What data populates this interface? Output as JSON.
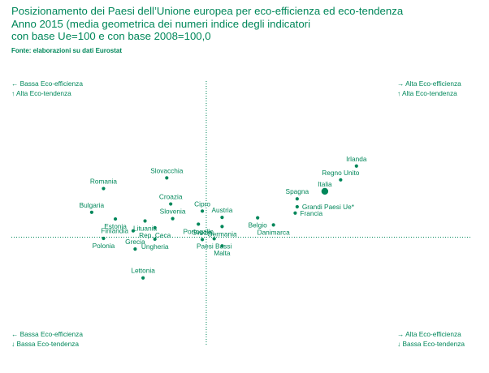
{
  "title_lines": [
    "Posizionamento dei Paesi dell’Unione europea per eco-efficienza ed eco-tendenza",
    "Anno 2015 (media geometrica dei numeri indice degli indicatori",
    "con base Ue=100 e con base 2008=100,0"
  ],
  "source": "Fonte: elaborazioni su dati Eurostat",
  "quadrants": {
    "top_left": [
      "← Bassa Eco-efficienza",
      "↑ Alta Eco-tendenza"
    ],
    "top_right": [
      "→ Alta Eco-efficienza",
      "↑ Alta Eco-tendenza"
    ],
    "bottom_left": [
      "← Bassa Eco-efficienza",
      "↓ Bassa Eco-tendenza"
    ],
    "bottom_right": [
      "→ Alta Eco-efficienza",
      "↓ Bassa Eco-tendenza"
    ]
  },
  "colors": {
    "accent": "#00875a"
  },
  "chart_data": {
    "type": "scatter",
    "reference_lines": {
      "x": 100,
      "y": 100
    },
    "xlim": [
      70,
      144
    ],
    "ylim": [
      80,
      128
    ],
    "points": [
      {
        "label": "Irlanda",
        "x": 138.0,
        "y": 118.0,
        "label_pos": "above"
      },
      {
        "label": "Regno Unito",
        "x": 134.0,
        "y": 114.5,
        "label_pos": "above"
      },
      {
        "label": "Italia",
        "x": 130.0,
        "y": 111.6,
        "label_pos": "above",
        "highlight": true
      },
      {
        "label": "Spagna",
        "x": 123.0,
        "y": 109.7,
        "label_pos": "above"
      },
      {
        "label": "Grandi Paesi Ue*",
        "x": 123.0,
        "y": 107.7,
        "label_pos": "right"
      },
      {
        "label": "Francia",
        "x": 122.5,
        "y": 106.1,
        "label_pos": "right"
      },
      {
        "label": "Slovacchia",
        "x": 90.0,
        "y": 115.0,
        "label_pos": "above"
      },
      {
        "label": "Romania",
        "x": 74.0,
        "y": 112.3,
        "label_pos": "above"
      },
      {
        "label": "Croazia",
        "x": 91.0,
        "y": 108.4,
        "label_pos": "above"
      },
      {
        "label": "Cipro",
        "x": 99.0,
        "y": 106.6,
        "label_pos": "above"
      },
      {
        "label": "Austria",
        "x": 104.0,
        "y": 105.0,
        "label_pos": "above"
      },
      {
        "label": "Slovenia",
        "x": 91.5,
        "y": 104.7,
        "label_pos": "above"
      },
      {
        "label": "Bulgaria",
        "x": 71.0,
        "y": 106.3,
        "label_pos": "above"
      },
      {
        "label": "Estonia",
        "x": 77.0,
        "y": 104.6,
        "label_pos": "below"
      },
      {
        "label": "Lituania",
        "x": 84.5,
        "y": 104.1,
        "label_pos": "below"
      },
      {
        "label": "Belgio",
        "x": 113.0,
        "y": 104.9,
        "label_pos": "below"
      },
      {
        "label": "Portogallo",
        "x": 98.0,
        "y": 103.3,
        "label_pos": "below"
      },
      {
        "label": "Germania",
        "x": 104.0,
        "y": 102.7,
        "label_pos": "below"
      },
      {
        "label": "Danimarca",
        "x": 117.0,
        "y": 103.1,
        "label_pos": "below"
      },
      {
        "label": "Finlandia",
        "x": 81.5,
        "y": 101.6,
        "label_pos": "left"
      },
      {
        "label": "Rep. Ceca",
        "x": 87.0,
        "y": 102.4,
        "label_pos": "below"
      },
      {
        "label": "Svezia",
        "x": 99.0,
        "y": 99.4,
        "label_pos": "above"
      },
      {
        "label": "Polonia",
        "x": 74.0,
        "y": 99.7,
        "label_pos": "below"
      },
      {
        "label": "Ungheria",
        "x": 87.0,
        "y": 99.5,
        "label_pos": "below"
      },
      {
        "label": "Paesi Bassi",
        "x": 102.0,
        "y": 99.6,
        "label_pos": "below"
      },
      {
        "label": "Grecia",
        "x": 82.0,
        "y": 97.0,
        "label_pos": "above"
      },
      {
        "label": "Malta",
        "x": 104.0,
        "y": 97.8,
        "label_pos": "below"
      },
      {
        "label": "Lettonia",
        "x": 84.0,
        "y": 89.7,
        "label_pos": "above"
      }
    ]
  }
}
